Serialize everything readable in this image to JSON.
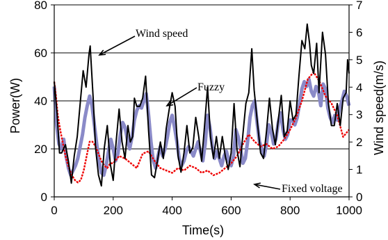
{
  "chart_data": {
    "type": "line",
    "xlabel": "Time(s)",
    "ylabel_left": "Power(W)",
    "ylabel_right": "Wind speed(m/s)",
    "xlim": [
      0,
      1000
    ],
    "ylim_left": [
      0,
      80
    ],
    "ylim_right": [
      0,
      7
    ],
    "x_ticks": [
      0,
      200,
      400,
      600,
      800,
      1000
    ],
    "y_left_ticks": [
      0,
      20,
      40,
      60,
      80
    ],
    "y_right_ticks": [
      0,
      1,
      2,
      3,
      4,
      5,
      6,
      7
    ],
    "gridlines_y": true,
    "colors": {
      "wind": "#000000",
      "fuzzy": "#8a8ac8",
      "fixed": "#ee0000"
    },
    "series": [
      {
        "name": "Wind speed",
        "axis": "right",
        "x": [
          0,
          10,
          18,
          25,
          38,
          48,
          58,
          68,
          78,
          88,
          98,
          108,
          118,
          122,
          132,
          140,
          150,
          160,
          170,
          180,
          190,
          200,
          210,
          220,
          230,
          240,
          250,
          258,
          266,
          272,
          280,
          290,
          300,
          310,
          320,
          330,
          340,
          350,
          360,
          370,
          380,
          390,
          400,
          410,
          420,
          430,
          440,
          450,
          460,
          470,
          480,
          490,
          500,
          510,
          520,
          530,
          540,
          550,
          560,
          570,
          580,
          590,
          600,
          610,
          620,
          630,
          640,
          650,
          660,
          670,
          678,
          690,
          700,
          710,
          720,
          730,
          740,
          750,
          760,
          770,
          780,
          790,
          800,
          810,
          820,
          830,
          840,
          850,
          858,
          866,
          872,
          880,
          890,
          898,
          910,
          920,
          930,
          940,
          950,
          960,
          970,
          980,
          990,
          995,
          1000
        ],
        "values": [
          4.2,
          3.0,
          1.6,
          1.6,
          1.9,
          1.3,
          0.5,
          1.5,
          2.2,
          3.4,
          4.6,
          4.0,
          5.2,
          5.5,
          3.6,
          1.8,
          0.8,
          0.4,
          1.8,
          2.6,
          1.2,
          0.6,
          2.0,
          3.2,
          2.0,
          1.4,
          2.6,
          2.0,
          2.2,
          3.6,
          3.3,
          3.3,
          3.6,
          4.4,
          2.4,
          0.8,
          0.7,
          1.3,
          2.0,
          1.4,
          2.5,
          3.2,
          3.8,
          3.3,
          1.5,
          0.9,
          1.6,
          2.6,
          1.6,
          1.8,
          2.9,
          2.2,
          1.3,
          2.6,
          4.0,
          2.2,
          1.4,
          2.2,
          1.4,
          2.2,
          1.5,
          1.0,
          1.6,
          3.4,
          1.7,
          1.1,
          2.3,
          3.4,
          3.8,
          5.4,
          3.9,
          2.6,
          1.6,
          1.4,
          2.4,
          3.6,
          2.5,
          1.9,
          2.8,
          3.7,
          2.2,
          2.4,
          3.5,
          2.8,
          3.0,
          4.4,
          5.7,
          5.4,
          6.3,
          5.6,
          4.8,
          4.5,
          5.6,
          3.8,
          6.0,
          5.2,
          3.4,
          2.6,
          2.6,
          3.4,
          2.6,
          3.6,
          3.8,
          5.0,
          4.5
        ]
      },
      {
        "name": "Fuzzy",
        "axis": "left",
        "x": [
          0,
          8,
          16,
          24,
          32,
          40,
          48,
          56,
          64,
          72,
          80,
          88,
          96,
          104,
          112,
          120,
          128,
          136,
          144,
          152,
          160,
          168,
          176,
          184,
          192,
          200,
          208,
          216,
          224,
          232,
          240,
          248,
          256,
          264,
          272,
          280,
          288,
          296,
          304,
          312,
          320,
          328,
          336,
          344,
          352,
          360,
          368,
          376,
          384,
          392,
          400,
          408,
          416,
          424,
          432,
          440,
          448,
          456,
          464,
          472,
          480,
          488,
          496,
          504,
          512,
          520,
          528,
          536,
          544,
          552,
          560,
          568,
          576,
          584,
          592,
          600,
          608,
          616,
          624,
          632,
          640,
          648,
          656,
          664,
          672,
          680,
          688,
          696,
          704,
          712,
          720,
          728,
          736,
          744,
          752,
          760,
          768,
          776,
          784,
          792,
          800,
          808,
          816,
          824,
          832,
          840,
          848,
          856,
          864,
          872,
          880,
          888,
          896,
          904,
          912,
          920,
          928,
          936,
          944,
          952,
          960,
          968,
          976,
          984,
          992,
          1000
        ],
        "values": [
          46,
          30,
          22,
          20,
          24,
          17,
          12,
          9,
          11,
          13,
          16,
          21,
          26,
          33,
          38,
          42,
          38,
          30,
          22,
          15,
          10,
          9,
          13,
          19,
          24,
          20,
          15,
          18,
          26,
          31,
          29,
          24,
          20,
          25,
          32,
          36,
          38,
          37,
          40,
          43,
          34,
          23,
          15,
          12,
          17,
          21,
          17,
          20,
          25,
          31,
          34,
          29,
          23,
          16,
          13,
          15,
          19,
          21,
          19,
          17,
          20,
          23,
          19,
          15,
          22,
          34,
          29,
          21,
          16,
          19,
          16,
          13,
          17,
          19,
          15,
          13,
          17,
          28,
          25,
          20,
          14,
          16,
          23,
          33,
          38,
          40,
          31,
          23,
          20,
          17,
          22,
          30,
          27,
          22,
          24,
          31,
          35,
          28,
          24,
          26,
          32,
          32,
          30,
          33,
          39,
          45,
          48,
          46,
          49,
          44,
          42,
          46,
          44,
          38,
          47,
          45,
          37,
          33,
          31,
          34,
          32,
          37,
          40,
          44,
          42,
          38
        ]
      },
      {
        "name": "Fixed voltage",
        "axis": "left",
        "x": [
          0,
          6,
          12,
          20,
          30,
          40,
          50,
          60,
          70,
          80,
          90,
          100,
          110,
          120,
          130,
          140,
          150,
          160,
          170,
          180,
          190,
          200,
          220,
          240,
          260,
          280,
          300,
          320,
          340,
          360,
          380,
          400,
          420,
          440,
          460,
          480,
          500,
          520,
          540,
          560,
          580,
          600,
          620,
          640,
          660,
          680,
          700,
          720,
          740,
          760,
          780,
          800,
          820,
          840,
          860,
          880,
          900,
          920,
          940,
          960,
          980,
          1000
        ],
        "values": [
          48,
          42,
          34,
          28,
          22,
          16,
          12,
          9,
          7,
          6,
          7,
          11,
          17,
          23,
          23,
          21,
          18,
          15,
          13,
          12,
          14,
          14,
          17,
          16,
          14,
          12,
          18,
          19,
          15,
          12,
          11,
          10,
          12,
          11,
          13,
          12,
          10,
          11,
          9,
          10,
          12,
          14,
          17,
          22,
          26,
          23,
          21,
          22,
          20,
          21,
          24,
          28,
          33,
          40,
          49,
          52,
          48,
          42,
          39,
          34,
          25,
          28
        ]
      }
    ],
    "annotations": [
      "Wind speed",
      "Fuzzy",
      "Fixed voltage"
    ]
  }
}
